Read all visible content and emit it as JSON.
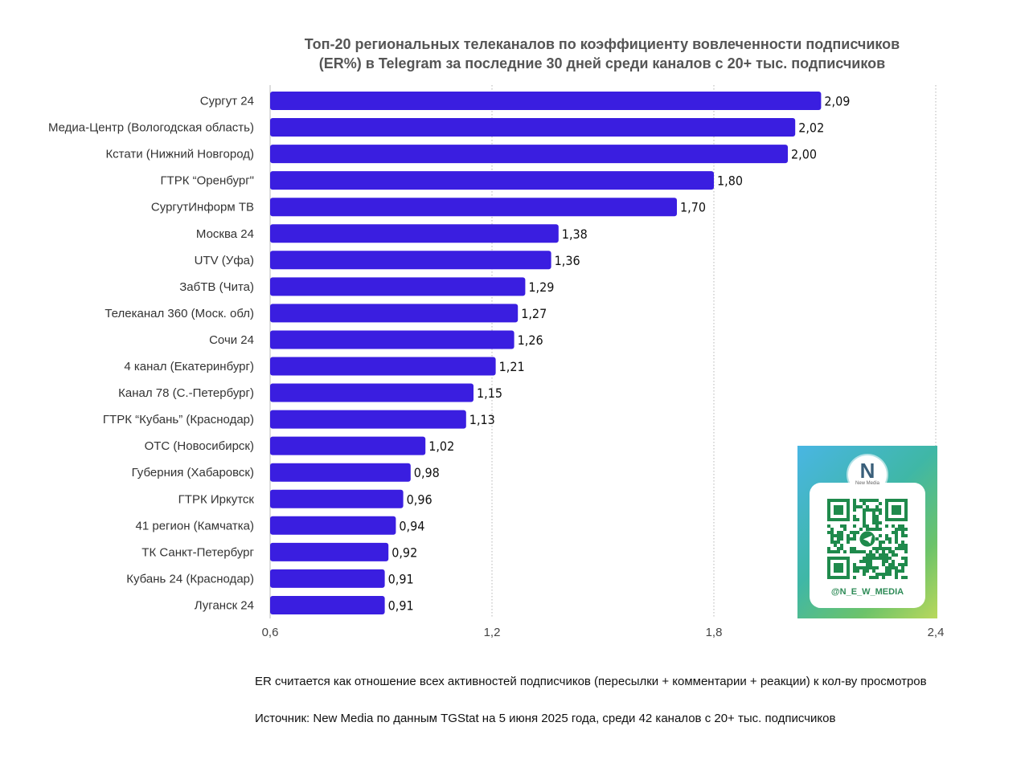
{
  "chart_data": {
    "type": "bar",
    "orientation": "horizontal",
    "title": "Топ-20 региональных телеканалов по коэффициенту вовлеченности подписчиков (ER%) в Telegram за последние 30 дней среди каналов с 20+ тыс. подписчиков",
    "title_lines": [
      "Топ-20 региональных телеканалов по коэффициенту вовлеченности подписчиков",
      "(ER%) в Telegram за последние 30 дней среди каналов с 20+ тыс. подписчиков"
    ],
    "categories": [
      "Сургут 24",
      "Медиа-Центр (Вологодская область)",
      "Кстати (Нижний Новгород)",
      "ГТРК “Оренбург\"",
      "СургутИнформ ТВ",
      "Москва 24",
      "UTV (Уфа)",
      "ЗабТВ (Чита)",
      "Телеканал 360 (Моск. обл)",
      "Сочи 24",
      "4 канал (Екатеринбург)",
      "Канал 78 (С.-Петербург)",
      "ГТРК “Кубань” (Краснодар)",
      "ОТС (Новосибирск)",
      "Губерния (Хабаровск)",
      "ГТРК Иркутск",
      "41 регион (Камчатка)",
      "ТК Санкт-Петербург",
      "Кубань 24 (Краснодар)",
      "Луганск 24"
    ],
    "values": [
      2.09,
      2.02,
      2.0,
      1.8,
      1.7,
      1.38,
      1.36,
      1.29,
      1.27,
      1.26,
      1.21,
      1.15,
      1.13,
      1.02,
      0.98,
      0.96,
      0.94,
      0.92,
      0.91,
      0.91
    ],
    "value_labels": [
      "2,09",
      "2,02",
      "2,00",
      "1,80",
      "1,70",
      "1,38",
      "1,36",
      "1,29",
      "1,27",
      "1,26",
      "1,21",
      "1,15",
      "1,13",
      "1,02",
      "0,98",
      "0,96",
      "0,94",
      "0,92",
      "0,91",
      "0,91"
    ],
    "xlim": [
      0.6,
      2.4
    ],
    "xticks": [
      0.6,
      1.2,
      1.8,
      2.4
    ],
    "xtick_labels": [
      "0,6",
      "1,2",
      "1,8",
      "2,4"
    ],
    "grid": "vertical dotted",
    "bar_color": "#3a1ee0"
  },
  "notes": {
    "er_definition": "ER считается как отношение всех активностей подписчиков (пересылки + комментарии + реакции) к кол-ву просмотров",
    "source": "Источник: New Media по данным TGStat на 5 июня 2025 года, среди 42 каналов с 20+ тыс. подписчиков"
  },
  "qr_card": {
    "logo_letter": "N",
    "logo_text": "New Media",
    "handle": "@N_E_W_MEDIA",
    "qr_color": "#1f8a4c"
  }
}
